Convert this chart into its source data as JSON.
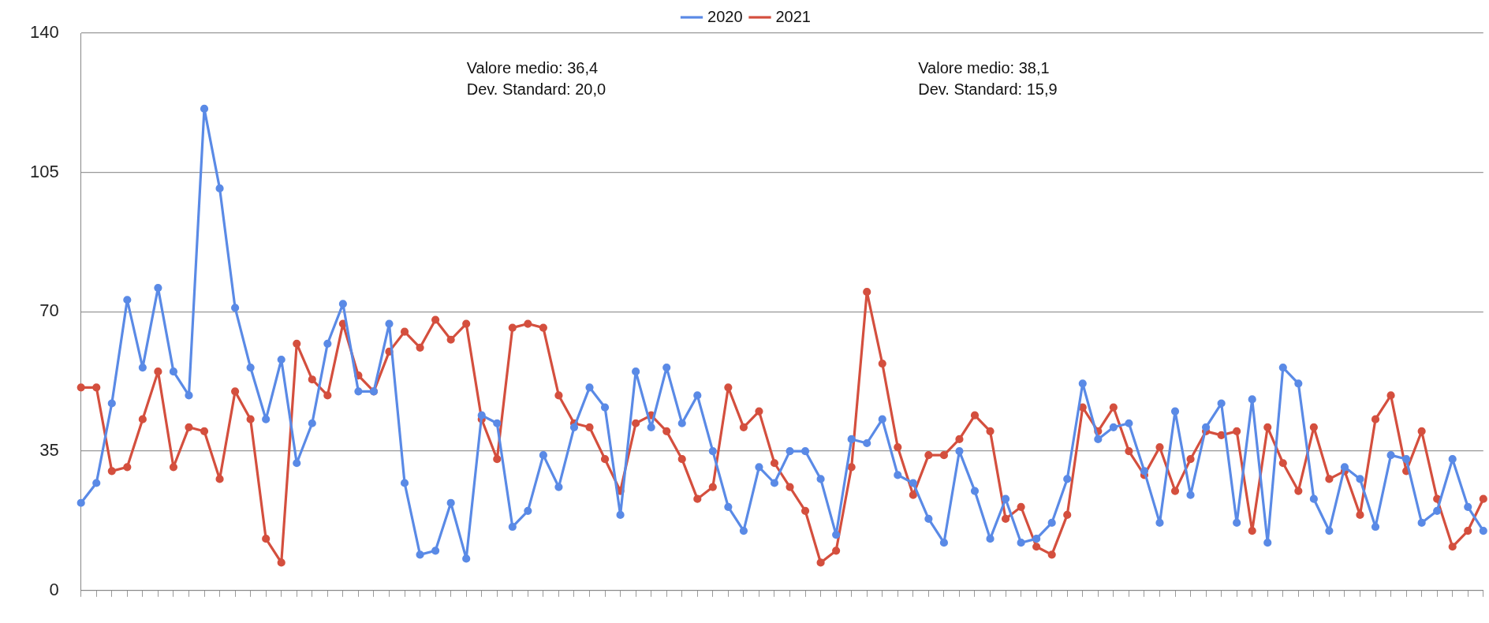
{
  "chart_data": {
    "type": "line",
    "categories": [
      null,
      null,
      null,
      null,
      null,
      null,
      null,
      null,
      null,
      null,
      null,
      null,
      null,
      null,
      null,
      null,
      null,
      null,
      null,
      null,
      null,
      null,
      null,
      null,
      null,
      null,
      null,
      null,
      null,
      null,
      null,
      null,
      null,
      null,
      null,
      null,
      null,
      null,
      null,
      null,
      null,
      null,
      null,
      null,
      null,
      null,
      null,
      null,
      null,
      null,
      null,
      null,
      null,
      null,
      null,
      null,
      null,
      null,
      null,
      null,
      null,
      null,
      null,
      null,
      null,
      null,
      null,
      null,
      null,
      null,
      null,
      null,
      null,
      null,
      null,
      null,
      null,
      null,
      null,
      null,
      null,
      null,
      null,
      null,
      null,
      null,
      null,
      null,
      null,
      null,
      null,
      null
    ],
    "series": [
      {
        "name": "2020",
        "color": "#5a8ae6",
        "values": [
          22,
          27,
          47,
          73,
          56,
          76,
          55,
          49,
          121,
          101,
          71,
          56,
          43,
          58,
          32,
          42,
          62,
          72,
          50,
          50,
          67,
          27,
          9,
          10,
          22,
          8,
          44,
          42,
          16,
          20,
          34,
          26,
          41,
          51,
          46,
          19,
          55,
          41,
          56,
          42,
          49,
          35,
          21,
          15,
          31,
          27,
          35,
          35,
          28,
          14,
          38,
          37,
          43,
          29,
          27,
          18,
          12,
          35,
          25,
          13,
          23,
          12,
          13,
          17,
          28,
          52,
          38,
          41,
          42,
          30,
          17,
          45,
          24,
          41,
          47,
          17,
          48,
          12,
          56,
          52,
          23,
          15,
          31,
          28,
          16,
          34,
          33,
          17,
          20,
          33,
          21,
          15
        ]
      },
      {
        "name": "2021",
        "color": "#d44f3e",
        "values": [
          51,
          51,
          30,
          31,
          43,
          55,
          31,
          41,
          40,
          28,
          50,
          43,
          13,
          7,
          62,
          53,
          49,
          67,
          54,
          50,
          60,
          65,
          61,
          68,
          63,
          67,
          43,
          33,
          66,
          67,
          66,
          49,
          42,
          41,
          33,
          25,
          42,
          44,
          40,
          33,
          23,
          26,
          51,
          41,
          45,
          32,
          26,
          20,
          7,
          10,
          31,
          75,
          57,
          36,
          24,
          34,
          34,
          38,
          44,
          40,
          18,
          21,
          11,
          9,
          19,
          46,
          40,
          46,
          35,
          29,
          36,
          25,
          33,
          40,
          39,
          40,
          15,
          41,
          32,
          25,
          41,
          28,
          30,
          19,
          43,
          49,
          30,
          40,
          23,
          11,
          15,
          23
        ]
      }
    ],
    "ylim": [
      0,
      140
    ],
    "yticks": [
      0,
      35,
      70,
      105,
      140
    ],
    "grid": "y",
    "legend": "top",
    "marker": "circle",
    "line_style": "solid",
    "annotations": [
      "Valore medio: 36,4\nDev. Standard: 20,0",
      "Valore medio: 38,1\nDev. Standard: 15,9"
    ]
  }
}
